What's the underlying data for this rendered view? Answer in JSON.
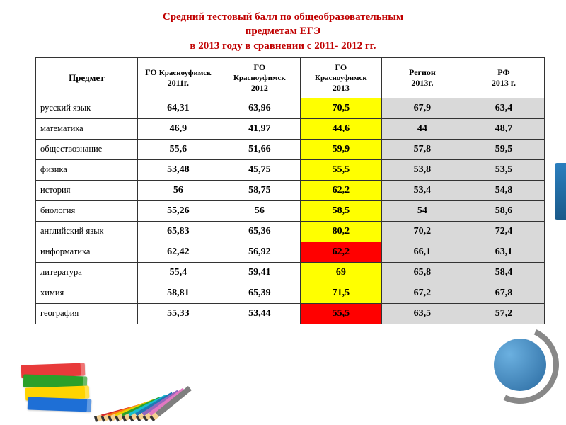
{
  "title_line1": "Средний тестовый балл по общеобразовательным",
  "title_line2": "предметам ЕГЭ",
  "title_line3": "в 2013 году в сравнении с 2011- 2012 гг.",
  "colors": {
    "title": "#c00000",
    "highlight_yellow": "#ffff00",
    "highlight_red": "#ff0000",
    "region_gray": "#d9d9d9",
    "border": "#333333",
    "background": "#ffffff"
  },
  "table": {
    "columns": [
      {
        "key": "subject",
        "label": "Предмет"
      },
      {
        "key": "y2011",
        "label_l1": "ГО",
        "label_l2": "Красноуфимск",
        "label_l3": "2011г."
      },
      {
        "key": "y2012",
        "label_l1": "ГО",
        "label_l2": "Красноуфимск",
        "label_l3": "2012"
      },
      {
        "key": "y2013",
        "label_l1": "ГО",
        "label_l2": "Красноуфимск",
        "label_l3": "2013"
      },
      {
        "key": "region",
        "label_l1": "Регион",
        "label_l2": "2013г."
      },
      {
        "key": "rf",
        "label_l1": "РФ",
        "label_l2": "2013 г."
      }
    ],
    "rows": [
      {
        "subject": "русский язык",
        "y2011": "64,31",
        "y2012": "63,96",
        "y2013": "70,5",
        "y2013_bg": "yellow",
        "region": "67,9",
        "rf": "63,4"
      },
      {
        "subject": "математика",
        "y2011": "46,9",
        "y2012": "41,97",
        "y2013": "44,6",
        "y2013_bg": "yellow",
        "region": "44",
        "rf": "48,7"
      },
      {
        "subject": "обществознание",
        "y2011": "55,6",
        "y2012": "51,66",
        "y2013": "59,9",
        "y2013_bg": "yellow",
        "region": "57,8",
        "rf": "59,5"
      },
      {
        "subject": "физика",
        "y2011": "53,48",
        "y2012": "45,75",
        "y2013": "55,5",
        "y2013_bg": "yellow",
        "region": "53,8",
        "rf": "53,5"
      },
      {
        "subject": "история",
        "y2011": "56",
        "y2012": "58,75",
        "y2013": "62,2",
        "y2013_bg": "yellow",
        "region": "53,4",
        "rf": "54,8"
      },
      {
        "subject": "биология",
        "y2011": "55,26",
        "y2012": "56",
        "y2013": "58,5",
        "y2013_bg": "yellow",
        "region": "54",
        "rf": "58,6"
      },
      {
        "subject": "английский язык",
        "y2011": "65,83",
        "y2012": "65,36",
        "y2013": "80,2",
        "y2013_bg": "yellow",
        "region": "70,2",
        "rf": "72,4"
      },
      {
        "subject": "информатика",
        "y2011": "62,42",
        "y2012": "56,92",
        "y2013": "62,2",
        "y2013_bg": "red",
        "region": "66,1",
        "rf": "63,1"
      },
      {
        "subject": "литература",
        "y2011": "55,4",
        "y2012": "59,41",
        "y2013": "69",
        "y2013_bg": "yellow",
        "region": "65,8",
        "rf": "58,4"
      },
      {
        "subject": "химия",
        "y2011": "58,81",
        "y2012": "65,39",
        "y2013": "71,5",
        "y2013_bg": "yellow",
        "region": "67,2",
        "rf": "67,8"
      },
      {
        "subject": "география",
        "y2011": "55,33",
        "y2012": "53,44",
        "y2013": "55,5",
        "y2013_bg": "red",
        "region": "63,5",
        "rf": "57,2"
      }
    ]
  },
  "decor": {
    "book_colors": [
      "#e83a3a",
      "#2aa02a",
      "#ffd400",
      "#1e6fd6"
    ],
    "pencil_colors": [
      "#d62728",
      "#ff7f0e",
      "#e8d000",
      "#2ca02c",
      "#17becf",
      "#1f77b4",
      "#9467bd",
      "#e377c2",
      "#7f7f7f"
    ]
  }
}
